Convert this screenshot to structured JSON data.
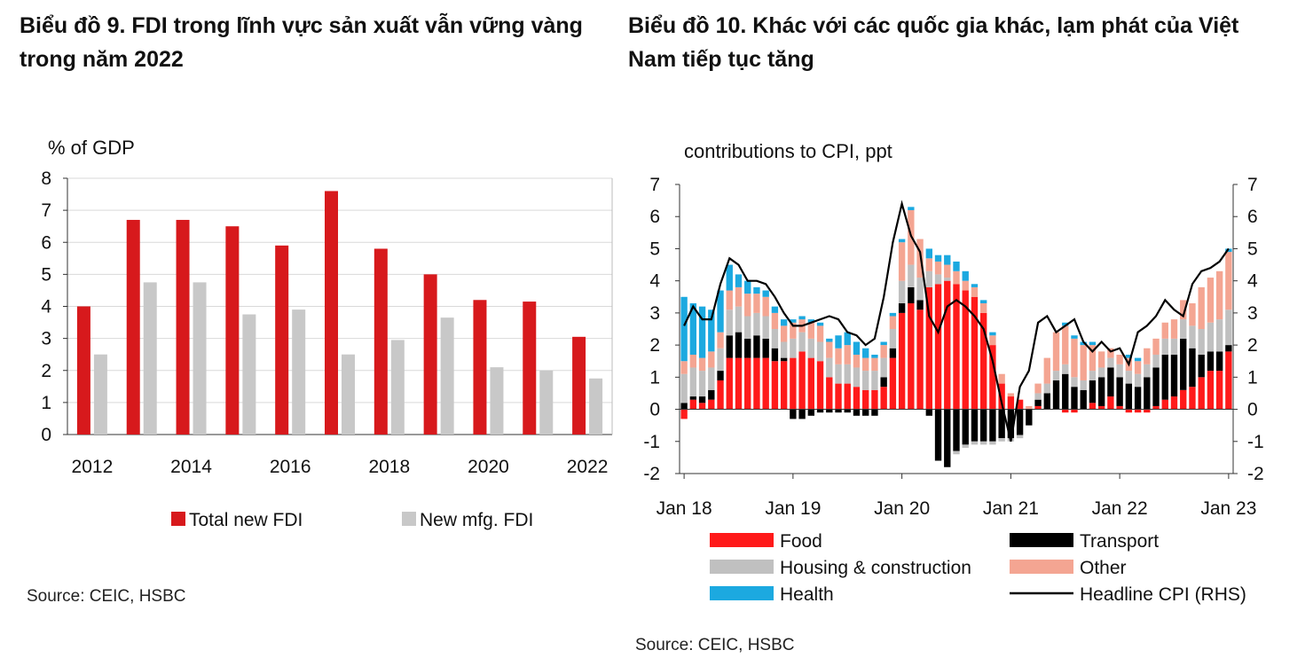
{
  "charts": [
    {
      "title": "Biểu đồ 9. FDI trong lĩnh vực sản xuất vẫn vững vàng trong năm 2022",
      "unit_label": "% of GDP",
      "source": "Source: CEIC, HSBC"
    },
    {
      "title": "Biểu đồ 10. Khác với các quốc gia khác, lạm phát của Việt Nam tiếp tục tăng",
      "unit_label": "contributions to CPI, ppt",
      "source": "Source: CEIC, HSBC"
    }
  ],
  "chart_data": [
    {
      "type": "bar",
      "title": "",
      "ylabel": "% of GDP",
      "ylim": [
        0,
        8
      ],
      "y_ticks": [
        0,
        1,
        2,
        3,
        4,
        5,
        6,
        7,
        8
      ],
      "categories": [
        "2012",
        "2013",
        "2014",
        "2015",
        "2016",
        "2017",
        "2018",
        "2019",
        "2020",
        "2021",
        "2022"
      ],
      "x_tick_labels": [
        "2012",
        "2014",
        "2016",
        "2018",
        "2020",
        "2022"
      ],
      "grid": true,
      "legend_position": "bottom",
      "series": [
        {
          "name": "Total new FDI",
          "color": "#d7191c",
          "values": [
            4.0,
            6.7,
            6.7,
            6.5,
            5.9,
            7.6,
            5.8,
            5.0,
            4.2,
            4.15,
            3.05
          ]
        },
        {
          "name": "New mfg. FDI",
          "color": "#c8c8c8",
          "values": [
            2.5,
            4.75,
            4.75,
            3.75,
            3.9,
            2.5,
            2.95,
            3.65,
            2.1,
            2.0,
            1.75
          ]
        }
      ]
    },
    {
      "type": "bar",
      "stacked": true,
      "title": "",
      "ylabel": "contributions to CPI, ppt",
      "ylim": [
        -2,
        7
      ],
      "y2lim": [
        -2,
        7
      ],
      "y_ticks": [
        -2,
        -1,
        0,
        1,
        2,
        3,
        4,
        5,
        6,
        7
      ],
      "x_tick_labels": [
        "Jan 18",
        "Jan 19",
        "Jan 20",
        "Jan 21",
        "Jan 22",
        "Jan 23"
      ],
      "x": [
        "Jan 18",
        "Feb 18",
        "Mar 18",
        "Apr 18",
        "May 18",
        "Jun 18",
        "Jul 18",
        "Aug 18",
        "Sep 18",
        "Oct 18",
        "Nov 18",
        "Dec 18",
        "Jan 19",
        "Feb 19",
        "Mar 19",
        "Apr 19",
        "May 19",
        "Jun 19",
        "Jul 19",
        "Aug 19",
        "Sep 19",
        "Oct 19",
        "Nov 19",
        "Dec 19",
        "Jan 20",
        "Feb 20",
        "Mar 20",
        "Apr 20",
        "May 20",
        "Jun 20",
        "Jul 20",
        "Aug 20",
        "Sep 20",
        "Oct 20",
        "Nov 20",
        "Dec 20",
        "Jan 21",
        "Feb 21",
        "Mar 21",
        "Apr 21",
        "May 21",
        "Jun 21",
        "Jul 21",
        "Aug 21",
        "Sep 21",
        "Oct 21",
        "Nov 21",
        "Dec 21",
        "Jan 22",
        "Feb 22",
        "Mar 22",
        "Apr 22",
        "May 22",
        "Jun 22",
        "Jul 22",
        "Aug 22",
        "Sep 22",
        "Oct 22",
        "Nov 22",
        "Dec 22",
        "Jan 23"
      ],
      "grid": false,
      "legend_position": "bottom",
      "series": [
        {
          "name": "Food",
          "color": "#ff1a1a",
          "values": [
            -0.3,
            0.3,
            0.2,
            0.3,
            0.9,
            1.6,
            1.6,
            1.6,
            1.6,
            1.6,
            1.5,
            1.5,
            1.6,
            1.8,
            1.6,
            1.5,
            1.0,
            0.8,
            0.8,
            0.7,
            0.6,
            0.6,
            0.7,
            1.6,
            3.0,
            3.3,
            3.1,
            3.8,
            3.9,
            4.0,
            3.9,
            3.7,
            3.5,
            3.0,
            2.0,
            0.8,
            0.4,
            0.3,
            0.0,
            0.1,
            0.0,
            0.0,
            -0.1,
            -0.1,
            0.0,
            0.2,
            0.1,
            0.4,
            0.1,
            -0.1,
            -0.1,
            -0.1,
            0.1,
            0.3,
            0.4,
            0.6,
            0.7,
            1.0,
            1.2,
            1.2,
            1.8
          ]
        },
        {
          "name": "Transport",
          "color": "#000000",
          "values": [
            0.2,
            0.1,
            0.2,
            0.3,
            0.3,
            0.7,
            0.8,
            0.6,
            0.7,
            0.6,
            0.4,
            0.1,
            -0.3,
            -0.3,
            -0.2,
            -0.1,
            -0.1,
            -0.1,
            -0.1,
            -0.2,
            -0.2,
            -0.2,
            0.3,
            0.3,
            0.3,
            0.5,
            0.3,
            -0.2,
            -1.6,
            -1.8,
            -1.3,
            -1.1,
            -1.0,
            -1.0,
            -1.0,
            -0.9,
            -0.9,
            -0.8,
            -0.5,
            0.2,
            0.5,
            0.9,
            1.1,
            0.7,
            0.6,
            0.7,
            0.9,
            0.9,
            0.9,
            0.8,
            0.7,
            1.0,
            1.2,
            1.4,
            1.3,
            1.6,
            1.2,
            0.7,
            0.6,
            0.6,
            0.2
          ]
        },
        {
          "name": "Housing & construction",
          "color": "#c0c0c0",
          "values": [
            0.9,
            0.9,
            0.8,
            0.7,
            0.7,
            0.8,
            0.8,
            0.7,
            0.7,
            0.7,
            0.6,
            0.5,
            0.6,
            0.6,
            0.6,
            0.6,
            0.6,
            0.6,
            0.6,
            0.6,
            0.6,
            0.6,
            0.6,
            0.6,
            0.7,
            0.7,
            0.7,
            0.5,
            0.3,
            0.1,
            -0.1,
            -0.1,
            -0.1,
            -0.1,
            -0.1,
            -0.1,
            -0.1,
            -0.1,
            0.0,
            0.2,
            0.3,
            0.3,
            0.3,
            0.3,
            0.3,
            0.3,
            0.3,
            0.3,
            0.4,
            0.4,
            0.4,
            0.4,
            0.4,
            0.5,
            0.5,
            0.6,
            0.7,
            0.8,
            0.9,
            1.0,
            1.1
          ]
        },
        {
          "name": "Other",
          "color": "#f4a592",
          "values": [
            0.4,
            0.4,
            0.4,
            0.5,
            0.5,
            0.6,
            0.6,
            0.7,
            0.6,
            0.6,
            0.5,
            0.5,
            0.5,
            0.4,
            0.5,
            0.5,
            0.5,
            0.5,
            0.6,
            0.4,
            0.4,
            0.4,
            0.4,
            0.4,
            1.2,
            1.7,
            1.2,
            0.4,
            0.4,
            0.4,
            0.4,
            0.3,
            0.3,
            0.3,
            0.3,
            0.3,
            0.1,
            0.0,
            0.1,
            0.3,
            0.8,
            1.2,
            1.2,
            1.2,
            1.1,
            0.8,
            0.5,
            0.3,
            0.3,
            0.4,
            0.4,
            0.5,
            0.5,
            0.5,
            0.6,
            0.6,
            0.7,
            1.3,
            1.4,
            1.5,
            1.8
          ]
        },
        {
          "name": "Health",
          "color": "#1ca9e0",
          "values": [
            2.0,
            1.6,
            1.6,
            1.3,
            1.3,
            0.8,
            0.4,
            0.4,
            0.2,
            0.2,
            0.2,
            0.2,
            0.1,
            0.1,
            0.1,
            0.1,
            0.1,
            0.4,
            0.4,
            0.4,
            0.3,
            0.1,
            0.1,
            0.1,
            0.1,
            0.1,
            0.0,
            0.3,
            0.2,
            0.3,
            0.3,
            0.3,
            0.1,
            0.1,
            0.1,
            0.0,
            0.0,
            0.0,
            0.0,
            0.0,
            0.0,
            0.0,
            0.1,
            0.1,
            0.1,
            0.1,
            0.0,
            0.0,
            0.0,
            0.1,
            0.1,
            0.0,
            0.0,
            0.0,
            0.0,
            0.0,
            0.0,
            0.0,
            0.0,
            0.0,
            0.1
          ]
        },
        {
          "name": "Headline CPI (RHS)",
          "color": "#000000",
          "type": "line",
          "values": [
            2.6,
            3.2,
            2.8,
            2.8,
            3.9,
            4.7,
            4.5,
            4.0,
            4.0,
            3.9,
            3.5,
            3.0,
            2.6,
            2.6,
            2.7,
            2.8,
            2.9,
            2.8,
            2.4,
            2.3,
            2.0,
            2.2,
            3.5,
            5.2,
            6.4,
            5.4,
            4.9,
            2.9,
            2.4,
            3.2,
            3.4,
            3.2,
            2.9,
            2.5,
            1.5,
            0.2,
            -1.0,
            0.7,
            1.2,
            2.7,
            2.9,
            2.4,
            2.6,
            2.8,
            2.1,
            1.8,
            2.1,
            1.8,
            1.9,
            1.4,
            2.4,
            2.6,
            2.9,
            3.4,
            3.1,
            2.9,
            3.9,
            4.3,
            4.4,
            4.6,
            5.0
          ]
        }
      ],
      "legend_entries": [
        "Food",
        "Transport",
        "Housing & construction",
        "Other",
        "Health",
        "Headline CPI (RHS)"
      ]
    }
  ]
}
